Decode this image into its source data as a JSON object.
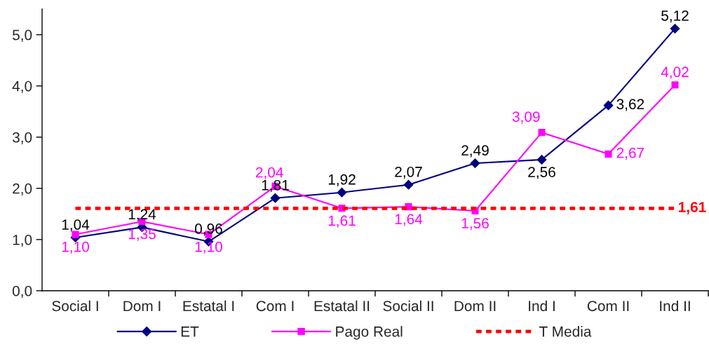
{
  "chart_data": {
    "type": "line",
    "categories": [
      "Social I",
      "Dom I",
      "Estatal I",
      "Com I",
      "Estatal II",
      "Social II",
      "Dom II",
      "Ind I",
      "Com II",
      "Ind II"
    ],
    "ylim": [
      0,
      5.5
    ],
    "yticks": [
      {
        "value": 0,
        "label": "0,0"
      },
      {
        "value": 1,
        "label": "1,0"
      },
      {
        "value": 2,
        "label": "2,0"
      },
      {
        "value": 3,
        "label": "3,0"
      },
      {
        "value": 4,
        "label": "4,0"
      },
      {
        "value": 5,
        "label": "5,0"
      }
    ],
    "legend": "bottom",
    "series": [
      {
        "name": "ET",
        "color": "#000080",
        "marker": "diamond",
        "line_style": "solid",
        "values": [
          1.04,
          1.24,
          0.96,
          1.81,
          1.92,
          2.07,
          2.49,
          2.56,
          3.62,
          5.12
        ],
        "value_labels": [
          "1,04",
          "1,24",
          "0,96",
          "1,81",
          "1,92",
          "2,07",
          "2,49",
          "2,56",
          "3,62",
          "5,12"
        ]
      },
      {
        "name": "Pago Real",
        "color": "#ff00ff",
        "marker": "square",
        "line_style": "solid",
        "values": [
          1.1,
          1.35,
          1.1,
          2.04,
          1.61,
          1.64,
          1.56,
          3.09,
          2.67,
          4.02
        ],
        "value_labels": [
          "1,10",
          "1,35",
          "1,10",
          "2,04",
          "1,61",
          "1,64",
          "1,56",
          "3,09",
          "2,67",
          "4,02"
        ]
      },
      {
        "name": "T Media",
        "color": "#ff0000",
        "marker": "none",
        "line_style": "dashed",
        "values": [
          1.61,
          1.61,
          1.61,
          1.61,
          1.61,
          1.61,
          1.61,
          1.61,
          1.61,
          1.61
        ],
        "value_labels": [
          null,
          null,
          null,
          null,
          null,
          null,
          null,
          null,
          null,
          "1,61"
        ]
      }
    ]
  }
}
